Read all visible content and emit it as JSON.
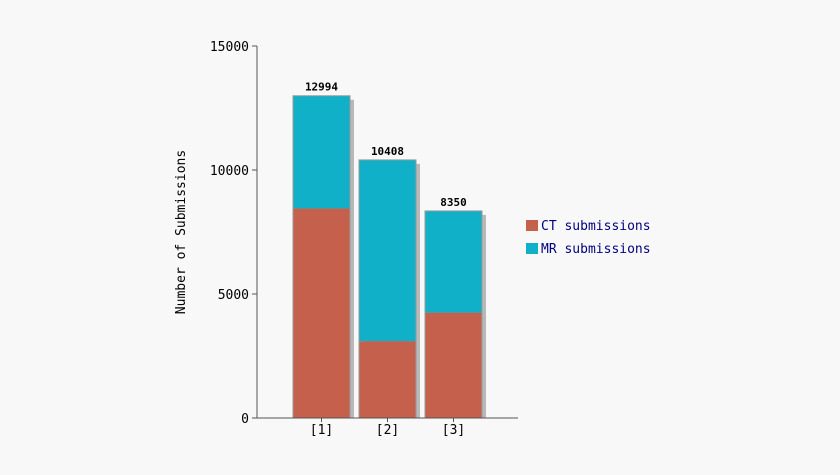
{
  "chart_data": {
    "type": "bar",
    "stacked": true,
    "categories": [
      "[1]",
      "[2]",
      "[3]"
    ],
    "series": [
      {
        "name": "CT submissions",
        "color": "#c5604c",
        "values": [
          8450,
          3100,
          4250
        ]
      },
      {
        "name": "MR submissions",
        "color": "#10b0c8",
        "values": [
          4544,
          7308,
          4100
        ]
      }
    ],
    "totals": [
      "12994",
      "10408",
      "8350"
    ],
    "ylabel": "Number of Submissions",
    "xlabel": "",
    "title": "",
    "ylim": [
      0,
      15000
    ],
    "yticks": [
      0,
      5000,
      10000,
      15000
    ],
    "grid": false,
    "legend_position": "right"
  }
}
